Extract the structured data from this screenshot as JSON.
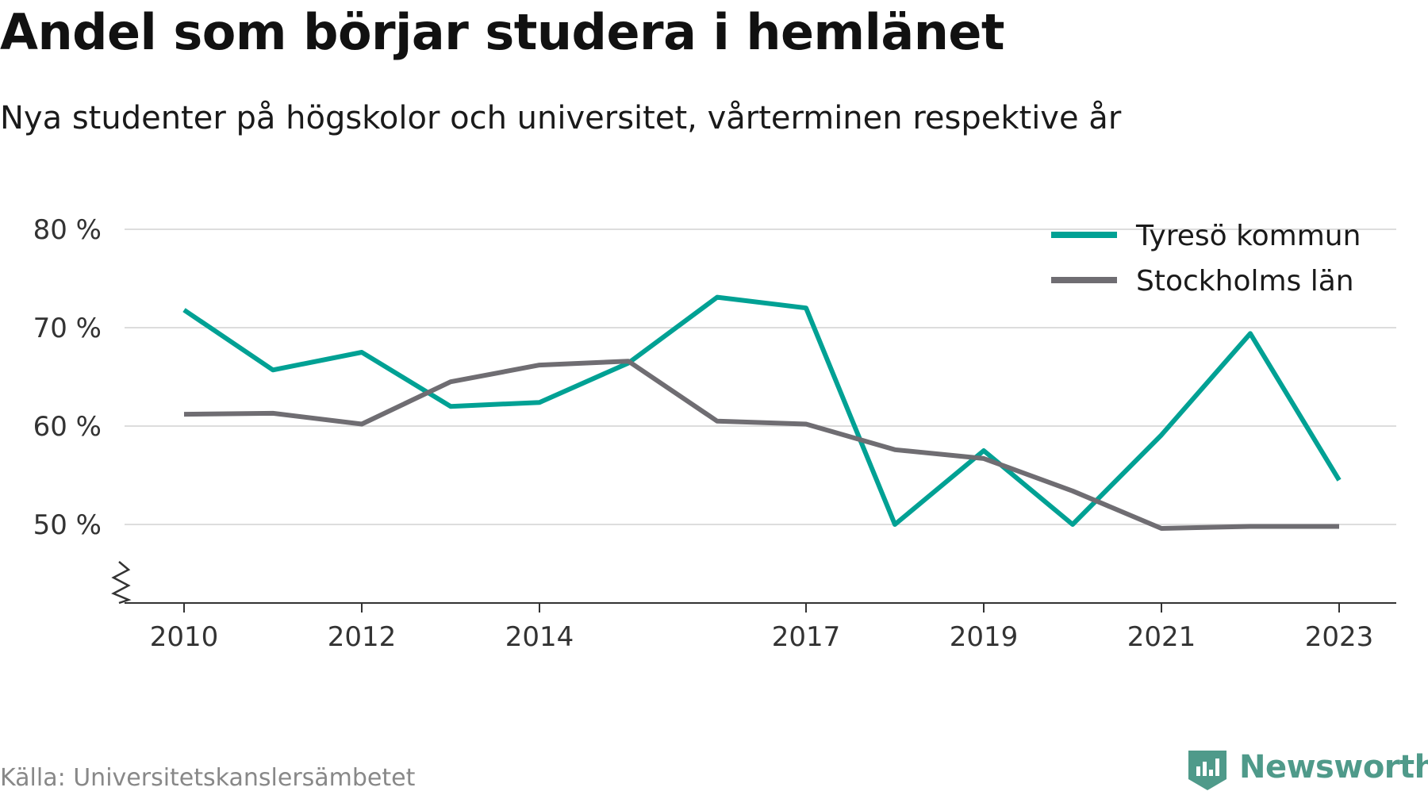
{
  "header": {
    "title": "Andel som börjar studera i hemlänet",
    "subtitle": "Nya studenter på högskolor och universitet, vårterminen respektive år"
  },
  "footer": {
    "source": "Källa: Universitetskanslersämbetet",
    "brand": "Newsworthy"
  },
  "colors": {
    "tyreso": "#00a194",
    "stockholm": "#6f6d72",
    "grid": "#dddddd",
    "axis": "#333333",
    "brand": "#4f9a8a"
  },
  "chart_data": {
    "type": "line",
    "title": "Andel som börjar studera i hemlänet",
    "subtitle": "Nya studenter på högskolor och universitet, vårterminen respektive år",
    "x": [
      2010,
      2011,
      2012,
      2013,
      2014,
      2015,
      2016,
      2017,
      2018,
      2019,
      2020,
      2021,
      2022,
      2023
    ],
    "x_tick_labels": [
      "2010",
      "2012",
      "2014",
      "2017",
      "2019",
      "2021",
      "2023"
    ],
    "y_ticks": [
      50,
      60,
      70,
      80
    ],
    "y_tick_suffix": " %",
    "ylim": [
      42,
      82
    ],
    "y_axis_break": true,
    "grid": true,
    "legend_position": "top-right",
    "series": [
      {
        "name": "Tyresö kommun",
        "color": "#00a194",
        "values": [
          71.8,
          65.7,
          67.5,
          62.0,
          62.4,
          66.4,
          73.1,
          72.0,
          50.0,
          57.5,
          50.0,
          59.1,
          69.4,
          54.5
        ]
      },
      {
        "name": "Stockholms län",
        "color": "#6f6d72",
        "values": [
          61.2,
          61.3,
          60.2,
          64.5,
          66.2,
          66.6,
          60.5,
          60.2,
          57.6,
          56.7,
          53.4,
          49.6,
          49.8,
          49.8
        ]
      }
    ]
  }
}
